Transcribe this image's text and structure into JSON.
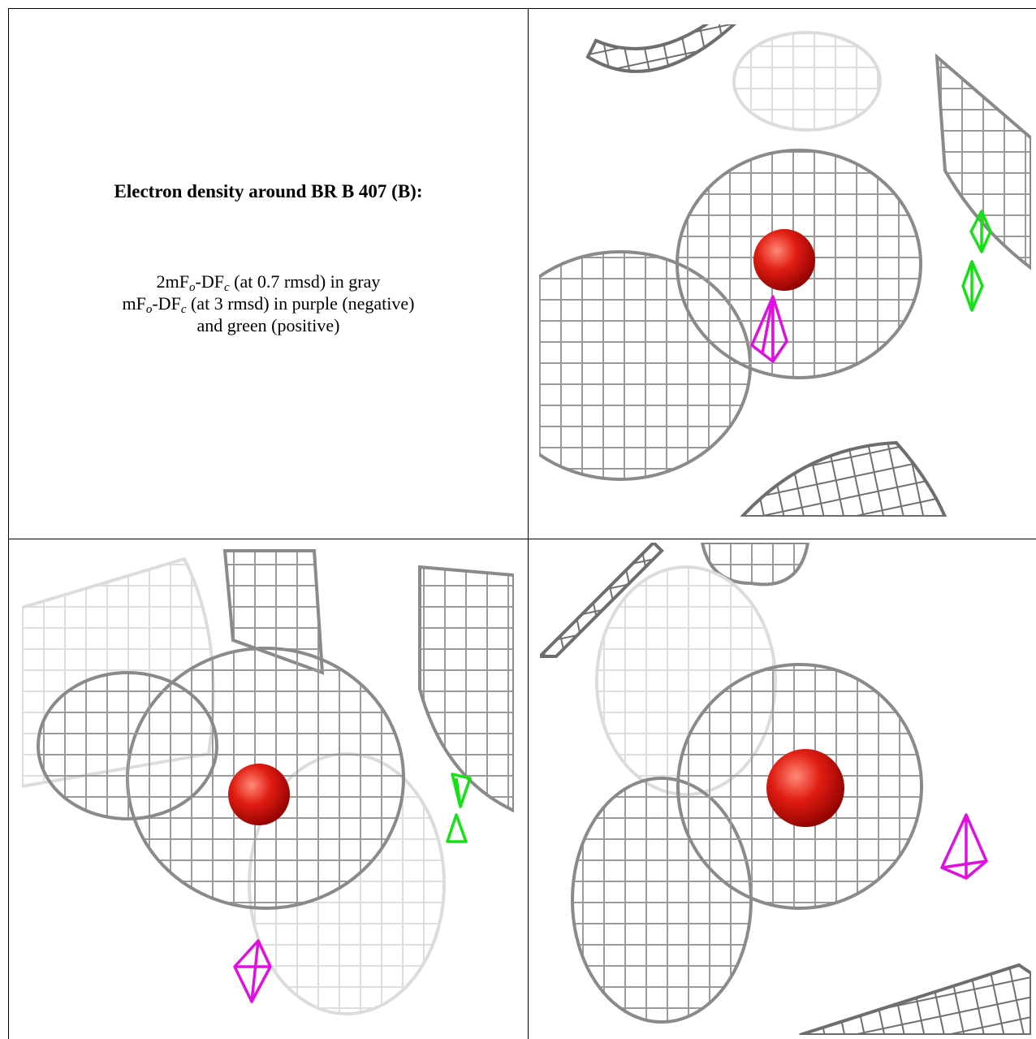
{
  "caption": {
    "title": "Electron density around BR B 407 (B):",
    "lines": [
      [
        "2mF",
        "o",
        "-DF",
        "c",
        " (at 0.7 rmsd) in gray"
      ],
      [
        "mF",
        "o",
        "-DF",
        "c",
        " (at 3 rmsd) in purple (negative)"
      ],
      [
        "and green (positive)"
      ]
    ]
  }
}
